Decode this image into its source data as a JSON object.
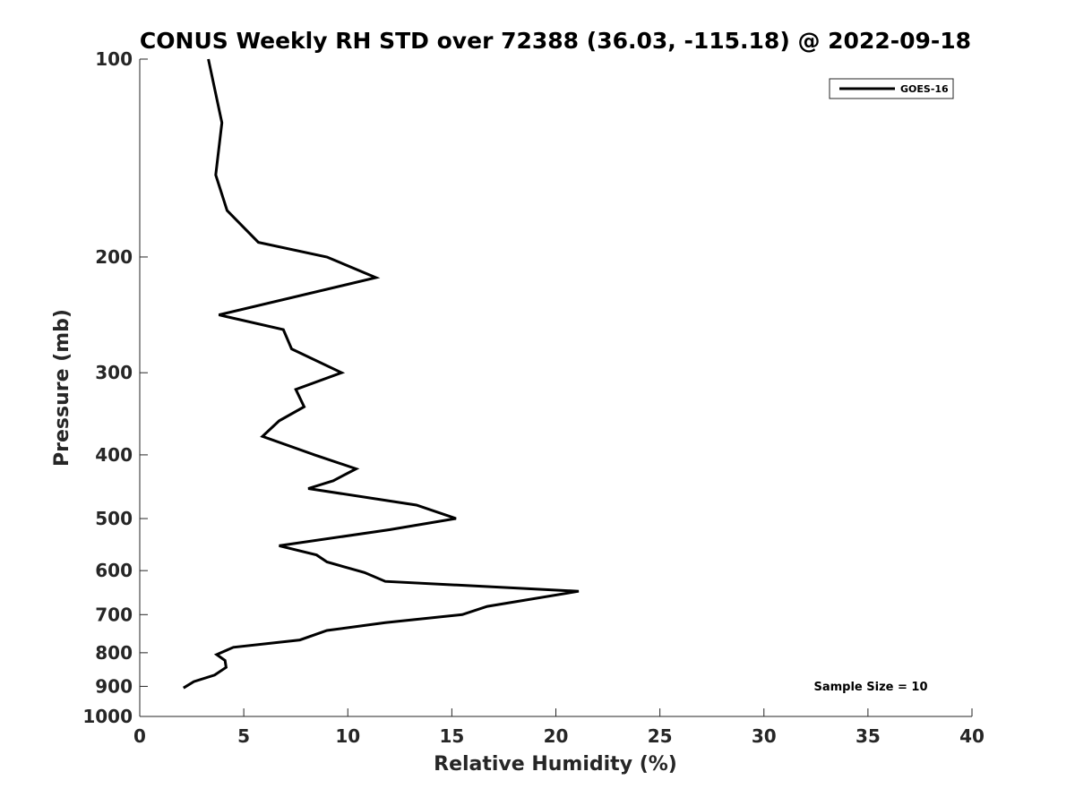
{
  "chart_data": {
    "type": "line",
    "title": "CONUS Weekly RH STD over 72388 (36.03, -115.18) @ 2022-09-18",
    "xlabel": "Relative Humidity (%)",
    "ylabel": "Pressure (mb)",
    "xlim": [
      0,
      40
    ],
    "ylim": [
      100,
      1000
    ],
    "y_scale": "log",
    "y_reversed": true,
    "grid": false,
    "legend_position": "top-right",
    "x_ticks": [
      0,
      5,
      10,
      15,
      20,
      25,
      30,
      35,
      40
    ],
    "y_ticks": [
      100,
      200,
      300,
      400,
      500,
      600,
      700,
      800,
      900,
      1000
    ],
    "annotation": "Sample Size = 10",
    "series": [
      {
        "name": "GOES-16",
        "color": "#000000",
        "points": [
          [
            3.3,
            100
          ],
          [
            3.95,
            125
          ],
          [
            3.65,
            150
          ],
          [
            4.2,
            170
          ],
          [
            5.7,
            190
          ],
          [
            9.0,
            200
          ],
          [
            11.35,
            215
          ],
          [
            3.8,
            245
          ],
          [
            6.9,
            258
          ],
          [
            7.3,
            276
          ],
          [
            9.7,
            300
          ],
          [
            7.5,
            318
          ],
          [
            7.9,
            338
          ],
          [
            6.7,
            355
          ],
          [
            5.9,
            375
          ],
          [
            8.4,
            400
          ],
          [
            10.4,
            420
          ],
          [
            9.3,
            438
          ],
          [
            8.1,
            450
          ],
          [
            13.3,
            477
          ],
          [
            15.2,
            500
          ],
          [
            12.0,
            520
          ],
          [
            6.7,
            550
          ],
          [
            8.5,
            568
          ],
          [
            9.0,
            582
          ],
          [
            10.8,
            604
          ],
          [
            11.8,
            623
          ],
          [
            21.1,
            645
          ],
          [
            16.7,
            680
          ],
          [
            15.5,
            700
          ],
          [
            11.8,
            720
          ],
          [
            9.0,
            740
          ],
          [
            7.7,
            765
          ],
          [
            4.5,
            785
          ],
          [
            3.7,
            805
          ],
          [
            4.1,
            822
          ],
          [
            4.15,
            842
          ],
          [
            3.6,
            865
          ],
          [
            2.6,
            885
          ],
          [
            2.1,
            905
          ]
        ]
      }
    ]
  }
}
